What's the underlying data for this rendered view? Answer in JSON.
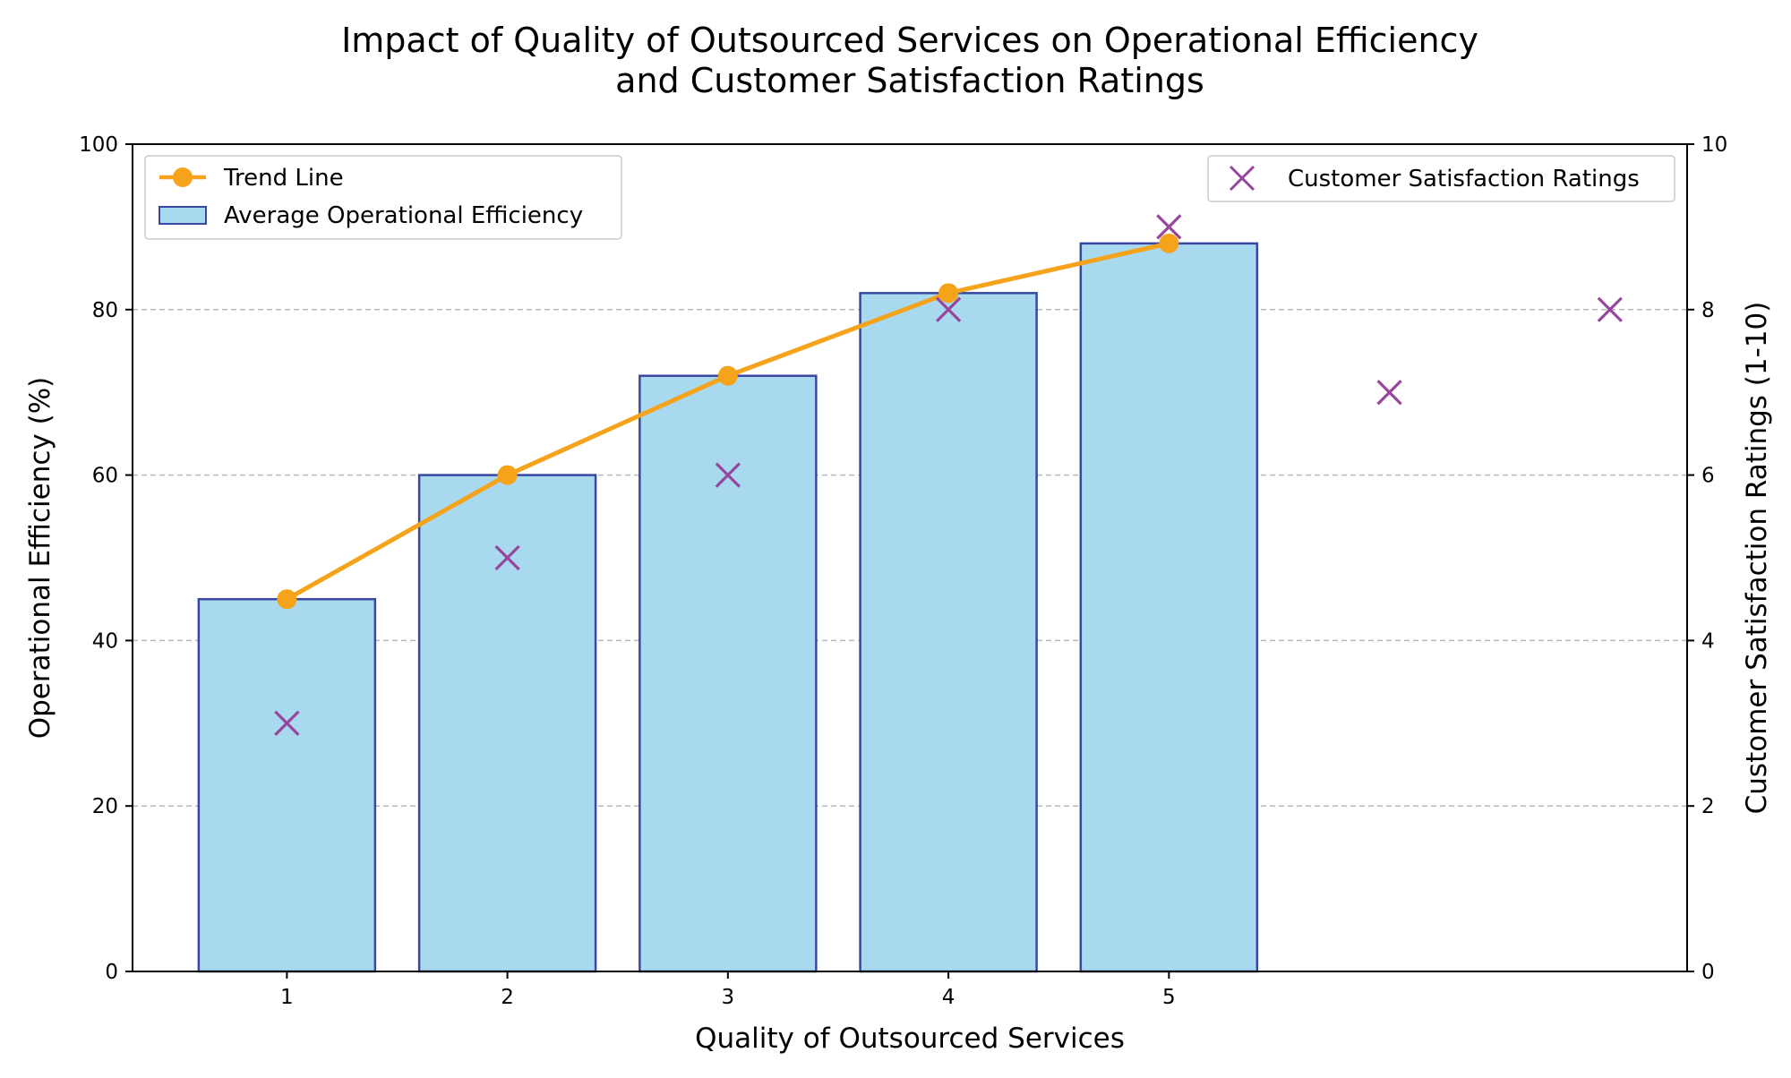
{
  "chart_data": {
    "type": "bar",
    "title_lines": [
      "Impact of Quality of Outsourced Services on Operational Efficiency",
      "and Customer Satisfaction Ratings"
    ],
    "xlabel": "Quality of Outsourced Services",
    "ylabel": "Operational Efficiency (%)",
    "ylabel_right": "Customer Satisfaction Ratings (1-10)",
    "categories": [
      1,
      2,
      3,
      4,
      5
    ],
    "x_tick_labels": [
      "1",
      "2",
      "3",
      "4",
      "5"
    ],
    "xlim": [
      0.3,
      7.35
    ],
    "ylim": [
      0,
      100
    ],
    "ylim_right": [
      0,
      10
    ],
    "y_ticks": [
      0,
      20,
      40,
      60,
      80,
      100
    ],
    "y_ticks_right": [
      0,
      2,
      4,
      6,
      8,
      10
    ],
    "grid": "horizontal dashed",
    "series": [
      {
        "name": "Average Operational Efficiency",
        "kind": "bar",
        "axis": "left",
        "x": [
          1,
          2,
          3,
          4,
          5
        ],
        "values": [
          45,
          60,
          72,
          82,
          88
        ],
        "color": "#a9d9ee",
        "edge_color": "#3848a0"
      },
      {
        "name": "Trend Line",
        "kind": "line",
        "axis": "left",
        "x": [
          1,
          2,
          3,
          4,
          5
        ],
        "values": [
          45,
          60,
          72,
          82,
          88
        ],
        "color": "#f5a31a"
      },
      {
        "name": "Customer Satisfaction Ratings",
        "kind": "scatter",
        "axis": "right",
        "marker": "x",
        "x": [
          1,
          2,
          3,
          4,
          5,
          6,
          7
        ],
        "values": [
          3,
          5,
          6,
          8,
          9,
          7,
          8
        ],
        "color": "#96469c"
      }
    ],
    "legend_left": {
      "placement": "top-left",
      "entries": [
        "Trend Line",
        "Average Operational Efficiency"
      ]
    },
    "legend_right": {
      "placement": "top-right",
      "entries": [
        "Customer Satisfaction Ratings"
      ]
    }
  }
}
